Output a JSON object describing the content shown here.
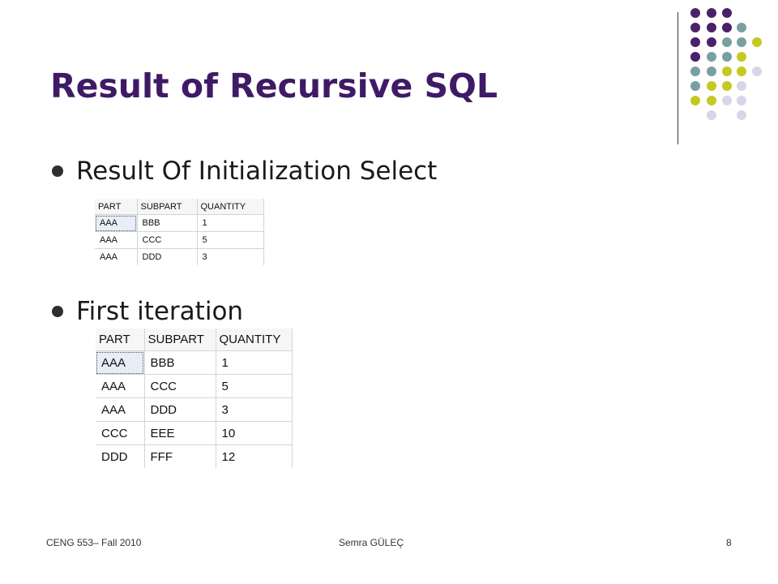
{
  "slide": {
    "title": "Result of Recursive SQL",
    "bullets": [
      "Result Of Initialization Select",
      "First iteration"
    ]
  },
  "table_initial": {
    "columns": [
      "PART",
      "SUBPART",
      "QUANTITY"
    ],
    "rows": [
      [
        "AAA",
        "BBB",
        "1"
      ],
      [
        "AAA",
        "CCC",
        "5"
      ],
      [
        "AAA",
        "DDD",
        "3"
      ]
    ]
  },
  "table_first_iteration": {
    "columns": [
      "PART",
      "SUBPART",
      "QUANTITY"
    ],
    "rows": [
      [
        "AAA",
        "BBB",
        "1"
      ],
      [
        "AAA",
        "CCC",
        "5"
      ],
      [
        "AAA",
        "DDD",
        "3"
      ],
      [
        "CCC",
        "EEE",
        "10"
      ],
      [
        "DDD",
        "FFF",
        "12"
      ]
    ]
  },
  "footer": {
    "course": "CENG 553– Fall 2010",
    "author": "Semra GÜLEÇ",
    "page_number": "8"
  },
  "colors": {
    "title": "#3f1a66",
    "dot_purple": "#4b2169",
    "dot_teal": "#78a0a0",
    "dot_olive": "#c6c823",
    "dot_lavender": "#d7d6e8"
  }
}
